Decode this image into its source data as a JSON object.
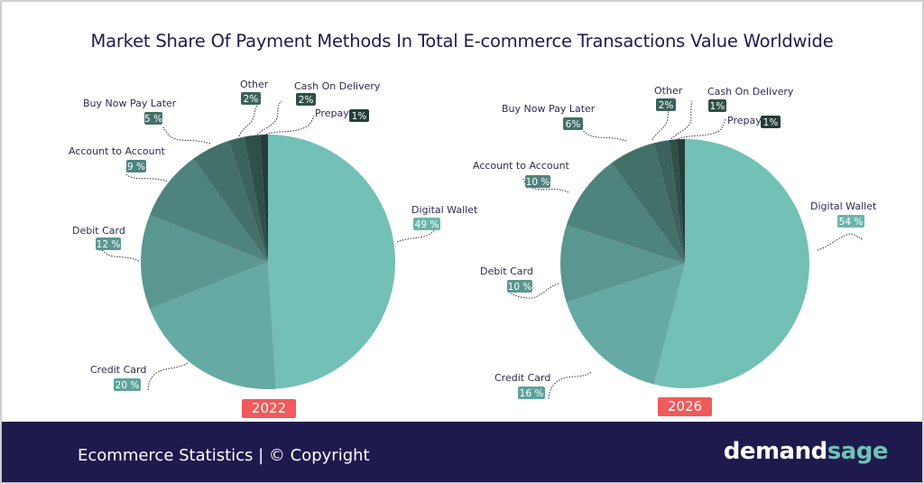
{
  "title": "Market Share Of Payment Methods In Total E-commerce Transactions Value Worldwide",
  "chart_data": [
    {
      "type": "pie",
      "title": "2022",
      "categories": [
        "Digital Wallet",
        "Credit Card",
        "Debit Card",
        "Account to Account",
        "Buy Now Pay Later",
        "Other",
        "Cash On Delivery",
        "Prepay"
      ],
      "values": [
        49,
        20,
        12,
        9,
        5,
        2,
        2,
        1
      ],
      "labels": [
        "49 %",
        "20 %",
        "12 %",
        "9 %",
        "5 %",
        "2%",
        "2%",
        "1%"
      ],
      "colors": [
        "#72c0b6",
        "#66aaa3",
        "#5a9790",
        "#4f837d",
        "#44706a",
        "#3b625c",
        "#2f4f4a",
        "#243d39"
      ]
    },
    {
      "type": "pie",
      "title": "2026",
      "categories": [
        "Digital Wallet",
        "Credit Card",
        "Debit Card",
        "Account to Account",
        "Buy Now Pay Later",
        "Other",
        "Cash On Delivery",
        "Prepay"
      ],
      "values": [
        54,
        16,
        10,
        10,
        6,
        2,
        1,
        1
      ],
      "labels": [
        "54 %",
        "16 %",
        "10 %",
        "10 %",
        "6%",
        "2%",
        "1%",
        "1%"
      ],
      "colors": [
        "#72c0b6",
        "#66aaa3",
        "#5a9790",
        "#4f837d",
        "#44706a",
        "#3b625c",
        "#2f4f4a",
        "#243d39"
      ]
    }
  ],
  "years": [
    "2022",
    "2026"
  ],
  "footer": {
    "left": "Ecommerce Statistics | © Copyright",
    "brand_a": "demand",
    "brand_b": "sage"
  }
}
